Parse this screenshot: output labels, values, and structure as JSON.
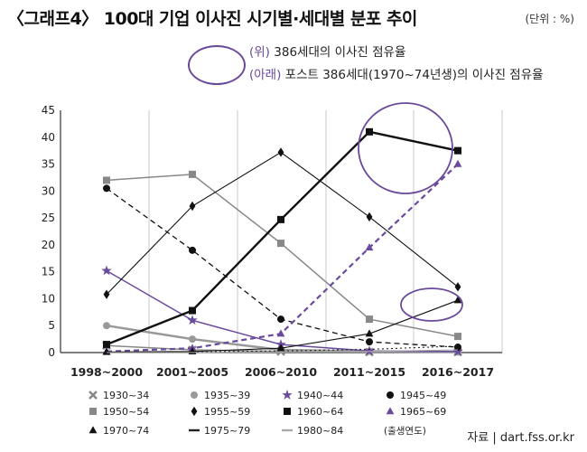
{
  "header": {
    "title": "〈그래프4〉 100대 기업 이사진 시기별·세대별 분포 추이",
    "unit": "(단위 : %)"
  },
  "annotations": {
    "line1_prefix": "(위)",
    "line1_text": " 386세대의 이사진 점유율",
    "line2_prefix": "(아래)",
    "line2_text": " 포스트 386세대(1970~74년생)의 이사진 점유율",
    "oval_color": "#6a4a9c"
  },
  "legend_note": "(출생연도)",
  "source": "자료 | dart.fss.or.kr",
  "chart_data": {
    "type": "line",
    "categories": [
      "1998~2000",
      "2001~2005",
      "2006~2010",
      "2011~2015",
      "2016~2017"
    ],
    "ylim": [
      0,
      45
    ],
    "yticks": [
      0,
      5,
      10,
      15,
      20,
      25,
      30,
      35,
      40,
      45
    ],
    "grid": "vertical",
    "series": [
      {
        "name": "1930~34",
        "values": [
          1.3,
          0.5,
          0.2,
          0.1,
          0.1
        ],
        "color": "#888888",
        "marker": "x",
        "dash": "solid",
        "width": 1.5
      },
      {
        "name": "1935~39",
        "values": [
          5.0,
          2.5,
          0.5,
          0.2,
          0.1
        ],
        "color": "#999999",
        "marker": "circle",
        "dash": "solid",
        "width": 2.5
      },
      {
        "name": "1940~44",
        "values": [
          15.2,
          6.0,
          1.5,
          0.3,
          0.2
        ],
        "color": "#6a4a9c",
        "marker": "star",
        "dash": "solid",
        "width": 1.5
      },
      {
        "name": "1945~49",
        "values": [
          30.5,
          19.0,
          6.2,
          2.0,
          1.0
        ],
        "color": "#111111",
        "marker": "circle",
        "dash": "dashed",
        "width": 1.3
      },
      {
        "name": "1950~54",
        "values": [
          32.0,
          33.1,
          20.3,
          6.2,
          3.0
        ],
        "color": "#888888",
        "marker": "square",
        "dash": "solid",
        "width": 1.5
      },
      {
        "name": "1955~59",
        "values": [
          10.8,
          27.2,
          37.2,
          25.2,
          12.2
        ],
        "color": "#111111",
        "marker": "diamond",
        "dash": "solid",
        "width": 1.1
      },
      {
        "name": "1960~64",
        "values": [
          1.5,
          7.8,
          24.7,
          41.0,
          37.5
        ],
        "color": "#111111",
        "marker": "square",
        "dash": "solid",
        "width": 2.4
      },
      {
        "name": "1965~69",
        "values": [
          0.2,
          0.8,
          3.5,
          19.5,
          35.0
        ],
        "color": "#6a4a9c",
        "marker": "triangle",
        "dash": "dashed",
        "width": 2.2
      },
      {
        "name": "1970~74",
        "values": [
          0.1,
          0.2,
          0.8,
          3.5,
          9.7
        ],
        "color": "#111111",
        "marker": "triangle",
        "dash": "solid",
        "width": 1.1
      },
      {
        "name": "1975~79",
        "values": [
          0.0,
          0.1,
          0.3,
          0.6,
          1.2
        ],
        "color": "#222222",
        "marker": "none",
        "dash": "dotted",
        "width": 1.1
      },
      {
        "name": "1980~84",
        "values": [
          0.0,
          0.0,
          0.1,
          0.2,
          0.5
        ],
        "color": "#aaaaaa",
        "marker": "none",
        "dash": "solid",
        "width": 1.1
      }
    ]
  }
}
